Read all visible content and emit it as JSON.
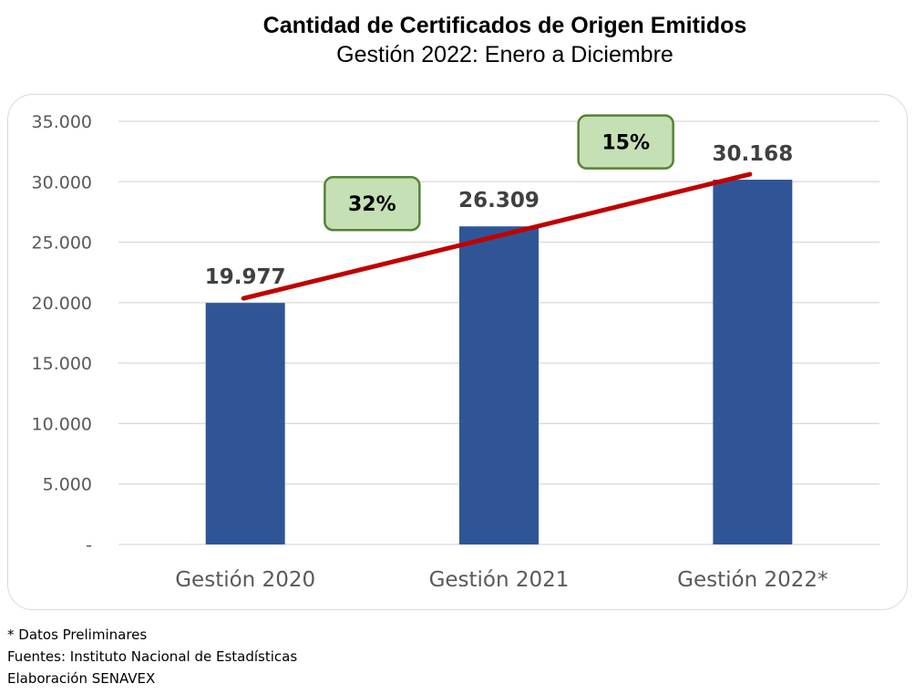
{
  "chart_data": {
    "type": "bar",
    "title": "Cantidad de Certificados de Origen Emitidos",
    "subtitle": "Gestión 2022: Enero a Diciembre",
    "categories": [
      "Gestión 2020",
      "Gestión 2021",
      "Gestión 2022*"
    ],
    "values": [
      19977,
      26309,
      30168
    ],
    "value_labels": [
      "19.977",
      "26.309",
      "30.168"
    ],
    "ylim": [
      0,
      35000
    ],
    "yticks": [
      0,
      5000,
      10000,
      15000,
      20000,
      25000,
      30000,
      35000
    ],
    "ytick_labels": [
      "-",
      "5.000",
      "10.000",
      "15.000",
      "20.000",
      "25.000",
      "30.000",
      "35.000"
    ],
    "growth_labels": [
      "32%",
      "15%"
    ],
    "grid": true,
    "colors": {
      "bar": "#2f5597",
      "trend_line": "#c00000",
      "growth_box_fill": "#c5e0b4",
      "growth_box_border": "#548235",
      "grid": "#d9d9d9"
    }
  },
  "footnotes": [
    "* Datos Preliminares",
    "Fuentes: Instituto Nacional de Estadísticas",
    "Elaboración SENAVEX"
  ]
}
